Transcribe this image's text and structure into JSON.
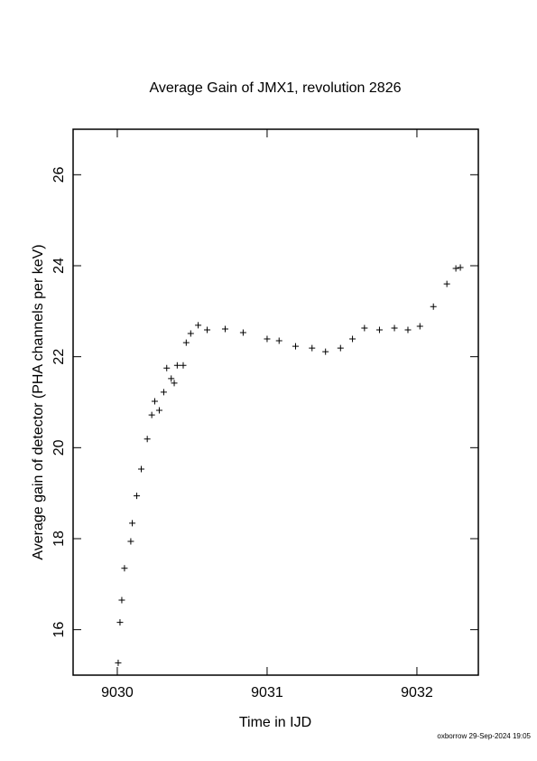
{
  "chart_data": {
    "type": "scatter",
    "title": "Average Gain of JMX1, revolution 2826",
    "x_label": "Time in IJD",
    "y_label": "Average gain of detector (PHA channels per keV)",
    "footnote": "oxborrow 29-Sep-2024 19:05",
    "xlim": [
      9029.705,
      9032.41
    ],
    "xticks": [
      9030,
      9031,
      9032
    ],
    "ylim": [
      15,
      27
    ],
    "yticks": [
      16,
      18,
      20,
      22,
      24,
      26
    ],
    "color": "#000000",
    "x": [
      9030.006,
      9030.018,
      9030.03,
      9030.048,
      9030.09,
      9030.1,
      9030.13,
      9030.16,
      9030.2,
      9030.23,
      9030.25,
      9030.28,
      9030.31,
      9030.33,
      9030.36,
      9030.38,
      9030.4,
      9030.44,
      9030.46,
      9030.49,
      9030.54,
      9030.6,
      9030.72,
      9030.84,
      9031.0,
      9031.08,
      9031.19,
      9031.3,
      9031.39,
      9031.49,
      9031.57,
      9031.65,
      9031.75,
      9031.85,
      9031.94,
      9032.02,
      9032.11,
      9032.2,
      9032.26,
      9032.29
    ],
    "values": [
      15.27,
      16.16,
      16.65,
      17.35,
      17.94,
      18.34,
      18.94,
      19.53,
      20.19,
      20.72,
      21.02,
      20.82,
      21.22,
      21.75,
      21.52,
      21.42,
      21.81,
      21.81,
      22.31,
      22.51,
      22.69,
      22.59,
      22.61,
      22.53,
      22.39,
      22.35,
      22.23,
      22.19,
      22.11,
      22.19,
      22.39,
      22.63,
      22.59,
      22.63,
      22.59,
      22.67,
      23.1,
      23.6,
      23.94,
      23.96
    ]
  }
}
